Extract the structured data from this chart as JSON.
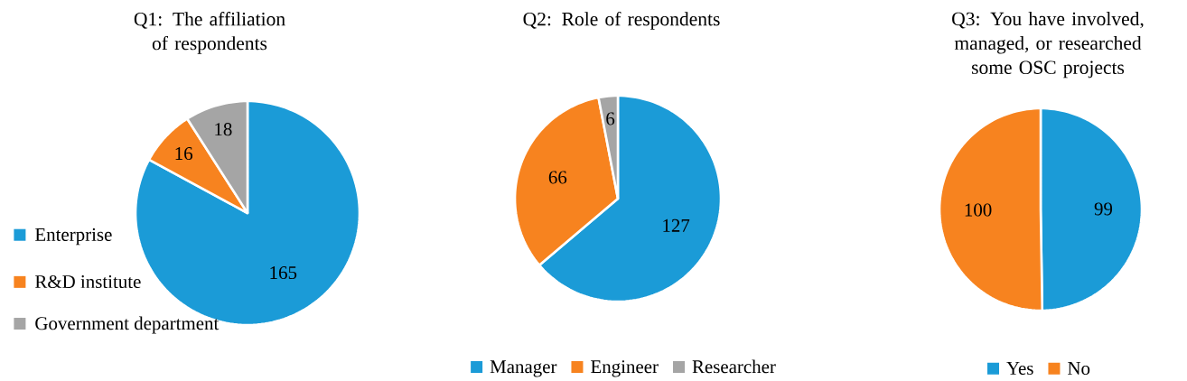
{
  "chart_data": [
    {
      "type": "pie",
      "title": "Q1: The affiliation of respondents",
      "categories": [
        "Enterprise",
        "R&D institute",
        "Government department"
      ],
      "values": [
        165,
        16,
        18
      ],
      "colors": [
        "#1b9bd7",
        "#f7831f",
        "#a5a5a5"
      ],
      "data_labels": true,
      "legend": "left"
    },
    {
      "type": "pie",
      "title": "Q2: Role of respondents",
      "categories": [
        "Manager",
        "Engineer",
        "Researcher"
      ],
      "values": [
        127,
        66,
        6
      ],
      "colors": [
        "#1b9bd7",
        "#f7831f",
        "#a5a5a5"
      ],
      "data_labels": true,
      "legend": "bottom"
    },
    {
      "type": "pie",
      "title": "Q3: You have involved, managed, or researched some OSC projects",
      "categories": [
        "Yes",
        "No"
      ],
      "values": [
        99,
        100
      ],
      "colors": [
        "#1b9bd7",
        "#f7831f"
      ],
      "data_labels": true,
      "legend": "bottom"
    }
  ]
}
